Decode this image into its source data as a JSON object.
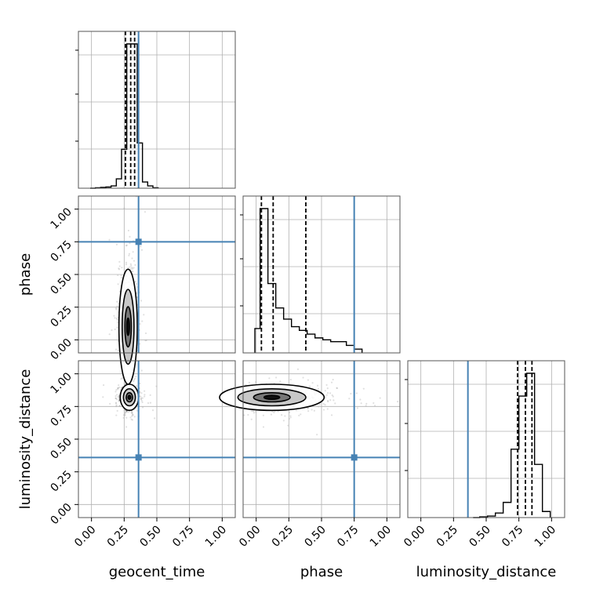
{
  "chart_data": {
    "type": "corner",
    "parameters": [
      "geocent_time",
      "phase",
      "luminosity_distance"
    ],
    "truths": {
      "geocent_time": 0.36,
      "phase": 0.75,
      "luminosity_distance": 0.36
    },
    "axis": {
      "lim": [
        -0.1,
        1.1
      ],
      "ticks": [
        0.0,
        0.25,
        0.5,
        0.75,
        1.0
      ],
      "tick_labels": [
        "0.00",
        "0.25",
        "0.50",
        "0.75",
        "1.00"
      ]
    },
    "grid": true,
    "marginals": [
      {
        "parameter": "geocent_time",
        "quantiles": [
          0.26,
          0.3,
          0.33
        ],
        "bins": [
          -0.01,
          0.03,
          0.07,
          0.11,
          0.15,
          0.19,
          0.23,
          0.27,
          0.31,
          0.35,
          0.39,
          0.43,
          0.47,
          0.51
        ],
        "counts": [
          0,
          0.5,
          1,
          1.5,
          3,
          12,
          50,
          185,
          185,
          58,
          8,
          3,
          0.5
        ]
      },
      {
        "parameter": "phase",
        "quantiles": [
          0.04,
          0.13,
          0.38
        ],
        "bins": [
          -0.01,
          0.03,
          0.09,
          0.15,
          0.21,
          0.27,
          0.33,
          0.39,
          0.45,
          0.51,
          0.57,
          0.63,
          0.69,
          0.75,
          0.81
        ],
        "counts": [
          13,
          77,
          37,
          24,
          18,
          14,
          12,
          10,
          8,
          7,
          6,
          6,
          4,
          2
        ]
      },
      {
        "parameter": "luminosity_distance",
        "quantiles": [
          0.74,
          0.8,
          0.85
        ],
        "bins": [
          0.4,
          0.45,
          0.51,
          0.57,
          0.63,
          0.69,
          0.75,
          0.81,
          0.87,
          0.93,
          0.99
        ],
        "counts": [
          0,
          0.5,
          1,
          3,
          10,
          45,
          80,
          95,
          35,
          4
        ]
      }
    ],
    "joint": [
      {
        "x": "geocent_time",
        "y": "phase",
        "center": [
          0.28,
          0.1
        ],
        "spread": [
          0.035,
          0.22
        ]
      },
      {
        "x": "geocent_time",
        "y": "luminosity_distance",
        "center": [
          0.29,
          0.82
        ],
        "spread": [
          0.035,
          0.05
        ]
      },
      {
        "x": "phase",
        "y": "luminosity_distance",
        "center": [
          0.12,
          0.82
        ],
        "spread": [
          0.2,
          0.05
        ]
      }
    ]
  }
}
